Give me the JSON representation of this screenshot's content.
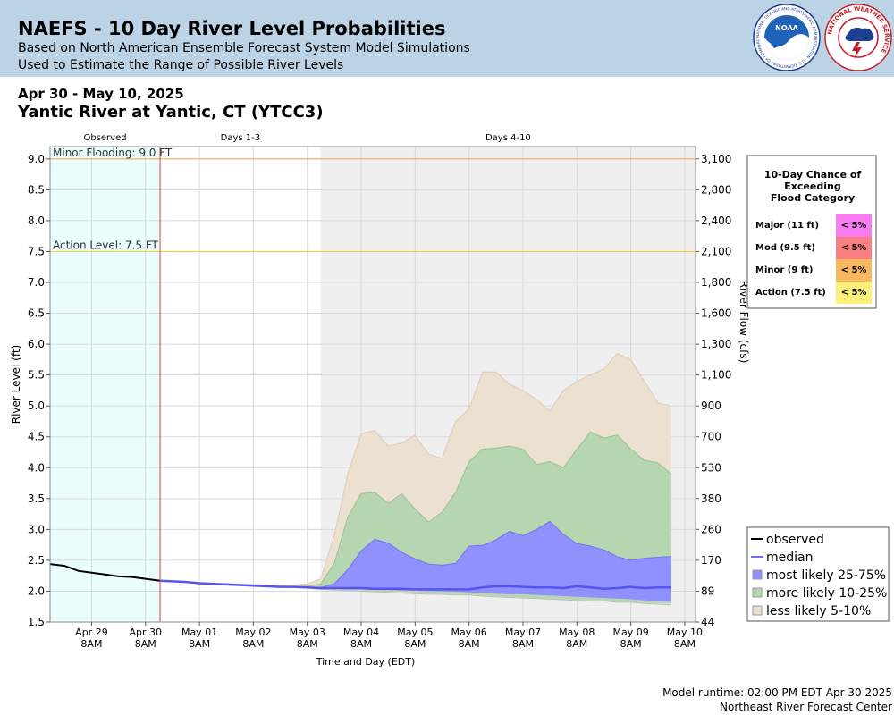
{
  "header": {
    "title": "NAEFS - 10 Day River Level Probabilities",
    "subtitle1": "Based on North American Ensemble Forecast System Model Simulations",
    "subtitle2": "Used to Estimate the Range of Possible River Levels",
    "noaa_logo_text": "NOAA",
    "noaa_ring_text": "NATIONAL OCEANIC AND ATMOSPHERIC ADMINISTRATION · U.S. DEPARTMENT OF COMMERCE",
    "nws_ring_text": "NATIONAL WEATHER SERVICE"
  },
  "date_range": "Apr 30 - May 10, 2025",
  "station": "Yantic River at Yantic, CT (YTCC3)",
  "footer": {
    "runtime": "Model runtime: 02:00 PM EDT Apr 30 2025",
    "center": "Northeast River Forecast Center"
  },
  "chart_data": {
    "type": "area",
    "xlabel": "Time and Day (EDT)",
    "ylabel": "River Level (ft)",
    "y2label": "River Flow (cfs)",
    "ylim": [
      1.5,
      9.2
    ],
    "xlim_days": [
      -1.77,
      10.2
    ],
    "x_note": "x values are days relative to Apr 30 8AM",
    "periods": [
      {
        "label": "Observed",
        "start": -1.77,
        "end": 0.27
      },
      {
        "label": "Days 1-3",
        "start": 0.27,
        "end": 3.25
      },
      {
        "label": "Days 4-10",
        "start": 3.25,
        "end": 10.2
      }
    ],
    "now_line": 0.27,
    "thresholds": [
      {
        "label": "Minor Flooding: 9.0 FT",
        "value": 9.0,
        "color": "#f5a54a"
      },
      {
        "label": "Action Level: 7.5 FT",
        "value": 7.5,
        "color": "#f0d030"
      }
    ],
    "y_ticks": [
      1.5,
      2.0,
      2.5,
      3.0,
      3.5,
      4.0,
      4.5,
      5.0,
      5.5,
      6.0,
      6.5,
      7.0,
      7.5,
      8.0,
      8.5,
      9.0
    ],
    "y_tick_labels": [
      "1.5",
      "2.0",
      "2.5",
      "3.0",
      "3.5",
      "4.0",
      "4.5",
      "5.0",
      "5.5",
      "6.0",
      "6.5",
      "7.0",
      "7.5",
      "8.0",
      "8.5",
      "9.0"
    ],
    "y2_ticks": [
      {
        "level": 1.5,
        "label": "44"
      },
      {
        "level": 2.0,
        "label": "89"
      },
      {
        "level": 2.5,
        "label": "170"
      },
      {
        "level": 3.0,
        "label": "260"
      },
      {
        "level": 3.5,
        "label": "380"
      },
      {
        "level": 4.0,
        "label": "530"
      },
      {
        "level": 4.5,
        "label": "700"
      },
      {
        "level": 5.0,
        "label": "900"
      },
      {
        "level": 5.5,
        "label": "1,100"
      },
      {
        "level": 6.0,
        "label": "1,300"
      },
      {
        "level": 6.5,
        "label": "1,600"
      },
      {
        "level": 7.0,
        "label": "1,800"
      },
      {
        "level": 7.5,
        "label": "2,100"
      },
      {
        "level": 8.0,
        "label": "2,400"
      },
      {
        "level": 8.5,
        "label": "2,800"
      },
      {
        "level": 9.0,
        "label": "3,100"
      }
    ],
    "x_ticks": [
      {
        "x": -1,
        "label": "Apr 29",
        "time": "8AM"
      },
      {
        "x": 0,
        "label": "Apr 30",
        "time": "8AM"
      },
      {
        "x": 1,
        "label": "May 01",
        "time": "8AM"
      },
      {
        "x": 2,
        "label": "May 02",
        "time": "8AM"
      },
      {
        "x": 3,
        "label": "May 03",
        "time": "8AM"
      },
      {
        "x": 4,
        "label": "May 04",
        "time": "8AM"
      },
      {
        "x": 5,
        "label": "May 05",
        "time": "8AM"
      },
      {
        "x": 6,
        "label": "May 06",
        "time": "8AM"
      },
      {
        "x": 7,
        "label": "May 07",
        "time": "8AM"
      },
      {
        "x": 8,
        "label": "May 08",
        "time": "8AM"
      },
      {
        "x": 9,
        "label": "May 09",
        "time": "8AM"
      },
      {
        "x": 10,
        "label": "May 10",
        "time": "8AM"
      }
    ],
    "observed": {
      "x": [
        -1.77,
        -1.5,
        -1.25,
        -1.0,
        -0.75,
        -0.5,
        -0.25,
        0.0,
        0.27
      ],
      "y": [
        2.44,
        2.41,
        2.33,
        2.3,
        2.27,
        2.24,
        2.23,
        2.2,
        2.17
      ]
    },
    "forecast_x": [
      0.27,
      0.5,
      0.75,
      1.0,
      1.25,
      1.5,
      1.75,
      2.0,
      2.25,
      2.5,
      2.75,
      3.0,
      3.25,
      3.5,
      3.75,
      4.0,
      4.25,
      4.5,
      4.75,
      5.0,
      5.25,
      5.5,
      5.75,
      6.0,
      6.25,
      6.5,
      6.75,
      7.0,
      7.25,
      7.5,
      7.75,
      8.0,
      8.25,
      8.5,
      8.75,
      9.0,
      9.25,
      9.5,
      9.75
    ],
    "median": [
      2.17,
      2.16,
      2.15,
      2.13,
      2.12,
      2.11,
      2.1,
      2.09,
      2.08,
      2.07,
      2.07,
      2.06,
      2.05,
      2.05,
      2.05,
      2.05,
      2.04,
      2.04,
      2.04,
      2.03,
      2.03,
      2.03,
      2.03,
      2.03,
      2.06,
      2.08,
      2.08,
      2.07,
      2.06,
      2.06,
      2.05,
      2.08,
      2.06,
      2.04,
      2.05,
      2.07,
      2.05,
      2.06,
      2.06
    ],
    "band_5_10_low": [
      2.17,
      2.16,
      2.15,
      2.13,
      2.12,
      2.11,
      2.1,
      2.09,
      2.08,
      2.07,
      2.06,
      2.05,
      2.03,
      2.02,
      2.01,
      2.0,
      1.99,
      1.98,
      1.97,
      1.96,
      1.95,
      1.95,
      1.94,
      1.94,
      1.92,
      1.91,
      1.9,
      1.89,
      1.88,
      1.87,
      1.86,
      1.85,
      1.84,
      1.84,
      1.82,
      1.82,
      1.8,
      1.79,
      1.78
    ],
    "band_5_10_high": [
      2.17,
      2.16,
      2.15,
      2.13,
      2.12,
      2.11,
      2.11,
      2.11,
      2.1,
      2.09,
      2.1,
      2.12,
      2.2,
      2.9,
      3.9,
      4.55,
      4.6,
      4.35,
      4.4,
      4.52,
      4.22,
      4.15,
      4.75,
      4.95,
      5.55,
      5.55,
      5.35,
      5.25,
      5.1,
      4.92,
      5.25,
      5.4,
      5.5,
      5.6,
      5.85,
      5.75,
      5.4,
      5.05,
      5.0
    ],
    "band_10_25_low": [
      2.17,
      2.16,
      2.15,
      2.13,
      2.12,
      2.11,
      2.1,
      2.09,
      2.08,
      2.07,
      2.06,
      2.05,
      2.04,
      2.03,
      2.02,
      2.01,
      2.0,
      1.99,
      1.99,
      1.98,
      1.97,
      1.96,
      1.95,
      1.95,
      1.93,
      1.92,
      1.91,
      1.9,
      1.89,
      1.88,
      1.87,
      1.86,
      1.85,
      1.85,
      1.83,
      1.83,
      1.81,
      1.81,
      1.8
    ],
    "band_10_25_high": [
      2.17,
      2.16,
      2.15,
      2.13,
      2.12,
      2.11,
      2.1,
      2.09,
      2.08,
      2.07,
      2.07,
      2.08,
      2.12,
      2.45,
      3.2,
      3.58,
      3.6,
      3.42,
      3.58,
      3.33,
      3.12,
      3.28,
      3.6,
      4.1,
      4.3,
      4.32,
      4.35,
      4.3,
      4.05,
      4.1,
      4.0,
      4.3,
      4.58,
      4.48,
      4.53,
      4.3,
      4.12,
      4.08,
      3.9
    ],
    "band_25_75_low": [
      2.17,
      2.16,
      2.15,
      2.13,
      2.12,
      2.11,
      2.1,
      2.09,
      2.08,
      2.07,
      2.06,
      2.05,
      2.04,
      2.04,
      2.03,
      2.03,
      2.02,
      2.02,
      2.01,
      2.01,
      2.0,
      2.0,
      1.99,
      1.98,
      1.97,
      1.96,
      1.95,
      1.95,
      1.94,
      1.93,
      1.92,
      1.91,
      1.9,
      1.89,
      1.88,
      1.87,
      1.85,
      1.84,
      1.83
    ],
    "band_25_75_high": [
      2.17,
      2.16,
      2.15,
      2.13,
      2.12,
      2.11,
      2.1,
      2.09,
      2.08,
      2.07,
      2.07,
      2.06,
      2.06,
      2.12,
      2.35,
      2.65,
      2.84,
      2.78,
      2.63,
      2.52,
      2.44,
      2.42,
      2.45,
      2.73,
      2.74,
      2.83,
      2.97,
      2.9,
      3.0,
      3.13,
      2.92,
      2.77,
      2.73,
      2.67,
      2.56,
      2.5,
      2.53,
      2.55,
      2.56
    ],
    "legend": [
      {
        "key": "observed",
        "label": "observed",
        "color": "#000000"
      },
      {
        "key": "median",
        "label": "median",
        "color": "#6d6dff"
      },
      {
        "key": "p25_75",
        "label": "most likely 25-75%",
        "color": "#9090ff"
      },
      {
        "key": "p10_25",
        "label": "more likely 10-25%",
        "color": "#b5d6b0"
      },
      {
        "key": "p5_10",
        "label": "less likely 5-10%",
        "color": "#ece0d0"
      }
    ],
    "flood_table": {
      "title_lines": [
        "10-Day Chance of",
        "Exceeding",
        "Flood Category"
      ],
      "rows": [
        {
          "label": "Major (11 ft)",
          "value": "< 5%",
          "color": "#f97cf2"
        },
        {
          "label": "Mod (9.5 ft)",
          "value": "< 5%",
          "color": "#f88080"
        },
        {
          "label": "Minor (9 ft)",
          "value": "< 5%",
          "color": "#f9b860"
        },
        {
          "label": "Action (7.5 ft)",
          "value": "< 5%",
          "color": "#fbf17a"
        }
      ]
    }
  }
}
